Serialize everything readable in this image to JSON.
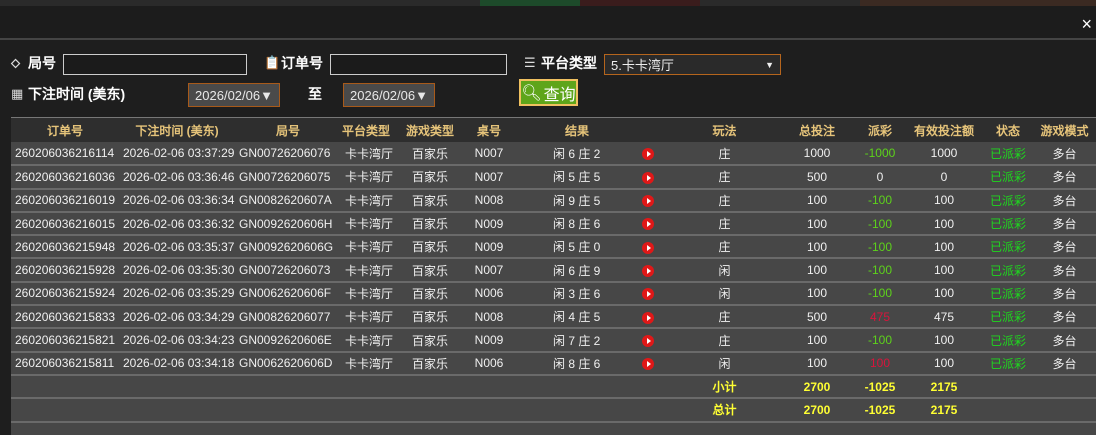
{
  "filters": {
    "round_label": "局号",
    "round_value": "",
    "order_label": "订单号",
    "order_value": "",
    "platform_label": "平台类型",
    "platform_selected": "5.卡卡湾厅",
    "time_label": "下注时间 (美东)",
    "date_from": "2026/02/06▼",
    "to_label": "至",
    "date_to": "2026/02/06▼",
    "query_label": "查询"
  },
  "close_label": "×",
  "headers": [
    "订单号",
    "下注时间 (美东)",
    "局号",
    "平台类型",
    "游戏类型",
    "桌号",
    "结果",
    "",
    "玩法",
    "总投注",
    "派彩",
    "有效投注额",
    "状态",
    "游戏模式"
  ],
  "rows": [
    {
      "order": "260206036216114",
      "time": "2026-02-06 03:37:29",
      "round": "GN00726206076",
      "platform": "卡卡湾厅",
      "game": "百家乐",
      "table": "N007",
      "result": "闲 6 庄 2",
      "play": "庄",
      "bet": "1000",
      "payout": "-1000",
      "payout_color": "green",
      "valid": "1000",
      "status": "已派彩",
      "mode": "多台"
    },
    {
      "order": "260206036216036",
      "time": "2026-02-06 03:36:46",
      "round": "GN00726206075",
      "platform": "卡卡湾厅",
      "game": "百家乐",
      "table": "N007",
      "result": "闲 5 庄 5",
      "play": "庄",
      "bet": "500",
      "payout": "0",
      "payout_color": "white",
      "valid": "0",
      "status": "已派彩",
      "mode": "多台"
    },
    {
      "order": "260206036216019",
      "time": "2026-02-06 03:36:34",
      "round": "GN0082620607A",
      "platform": "卡卡湾厅",
      "game": "百家乐",
      "table": "N008",
      "result": "闲 9 庄 5",
      "play": "庄",
      "bet": "100",
      "payout": "-100",
      "payout_color": "green",
      "valid": "100",
      "status": "已派彩",
      "mode": "多台"
    },
    {
      "order": "260206036216015",
      "time": "2026-02-06 03:36:32",
      "round": "GN0092620606H",
      "platform": "卡卡湾厅",
      "game": "百家乐",
      "table": "N009",
      "result": "闲 8 庄 6",
      "play": "庄",
      "bet": "100",
      "payout": "-100",
      "payout_color": "green",
      "valid": "100",
      "status": "已派彩",
      "mode": "多台"
    },
    {
      "order": "260206036215948",
      "time": "2026-02-06 03:35:37",
      "round": "GN0092620606G",
      "platform": "卡卡湾厅",
      "game": "百家乐",
      "table": "N009",
      "result": "闲 5 庄 0",
      "play": "庄",
      "bet": "100",
      "payout": "-100",
      "payout_color": "green",
      "valid": "100",
      "status": "已派彩",
      "mode": "多台"
    },
    {
      "order": "260206036215928",
      "time": "2026-02-06 03:35:30",
      "round": "GN00726206073",
      "platform": "卡卡湾厅",
      "game": "百家乐",
      "table": "N007",
      "result": "闲 6 庄 9",
      "play": "闲",
      "bet": "100",
      "payout": "-100",
      "payout_color": "green",
      "valid": "100",
      "status": "已派彩",
      "mode": "多台"
    },
    {
      "order": "260206036215924",
      "time": "2026-02-06 03:35:29",
      "round": "GN0062620606F",
      "platform": "卡卡湾厅",
      "game": "百家乐",
      "table": "N006",
      "result": "闲 3 庄 6",
      "play": "闲",
      "bet": "100",
      "payout": "-100",
      "payout_color": "green",
      "valid": "100",
      "status": "已派彩",
      "mode": "多台"
    },
    {
      "order": "260206036215833",
      "time": "2026-02-06 03:34:29",
      "round": "GN00826206077",
      "platform": "卡卡湾厅",
      "game": "百家乐",
      "table": "N008",
      "result": "闲 4 庄 5",
      "play": "庄",
      "bet": "500",
      "payout": "475",
      "payout_color": "red",
      "valid": "475",
      "status": "已派彩",
      "mode": "多台"
    },
    {
      "order": "260206036215821",
      "time": "2026-02-06 03:34:23",
      "round": "GN0092620606E",
      "platform": "卡卡湾厅",
      "game": "百家乐",
      "table": "N009",
      "result": "闲 7 庄 2",
      "play": "庄",
      "bet": "100",
      "payout": "-100",
      "payout_color": "green",
      "valid": "100",
      "status": "已派彩",
      "mode": "多台"
    },
    {
      "order": "260206036215811",
      "time": "2026-02-06 03:34:18",
      "round": "GN0062620606D",
      "platform": "卡卡湾厅",
      "game": "百家乐",
      "table": "N006",
      "result": "闲 8 庄 6",
      "play": "闲",
      "bet": "100",
      "payout": "100",
      "payout_color": "red",
      "valid": "100",
      "status": "已派彩",
      "mode": "多台"
    }
  ],
  "subtotal": {
    "label": "小计",
    "bet": "2700",
    "payout": "-1025",
    "valid": "2175"
  },
  "total": {
    "label": "总计",
    "bet": "2700",
    "payout": "-1025",
    "valid": "2175"
  }
}
